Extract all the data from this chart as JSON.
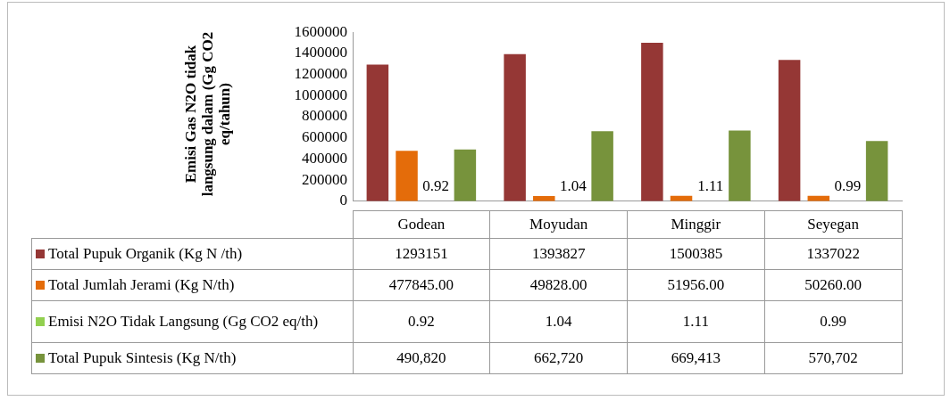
{
  "chart_data": {
    "type": "bar",
    "ylabel": "Emisi Gas N2O tidak langsung dalam (Gg CO2 eq/tahun)",
    "categories": [
      "Godean",
      "Moyudan",
      "Minggir",
      "Seyegan"
    ],
    "ylim": [
      0,
      1600000
    ],
    "yticks": [
      0,
      200000,
      400000,
      600000,
      800000,
      1000000,
      1200000,
      1400000,
      1600000
    ],
    "grid": false,
    "legend": "bottom",
    "data_labels": false,
    "series": [
      {
        "name": "Total Pupuk Organik (Kg N /th)",
        "color": "#953735",
        "values": [
          1293151,
          1393827,
          1500385,
          1337022
        ],
        "value_labels": [
          "1293151",
          "1393827",
          "1500385",
          "1337022"
        ]
      },
      {
        "name": "Total Jumlah Jerami (Kg N/th)",
        "color": "#e46c0a",
        "values": [
          477845,
          49828,
          51956,
          50260
        ],
        "value_labels": [
          "477845.00",
          "49828.00",
          "51956.00",
          "50260.00"
        ]
      },
      {
        "name": "Emisi N2O Tidak Langsung (Gg CO2 eq/th)",
        "color": "#92d050",
        "values": [
          0.92,
          1.04,
          1.11,
          0.99
        ],
        "value_labels": [
          "0.92",
          "1.04",
          "1.11",
          "0.99"
        ]
      },
      {
        "name": "Total Pupuk Sintesis  (Kg N/th)",
        "color": "#77933c",
        "values": [
          490820,
          662720,
          669413,
          570702
        ],
        "value_labels": [
          "490,820",
          "662,720",
          "669,413",
          "570,702"
        ]
      }
    ]
  }
}
